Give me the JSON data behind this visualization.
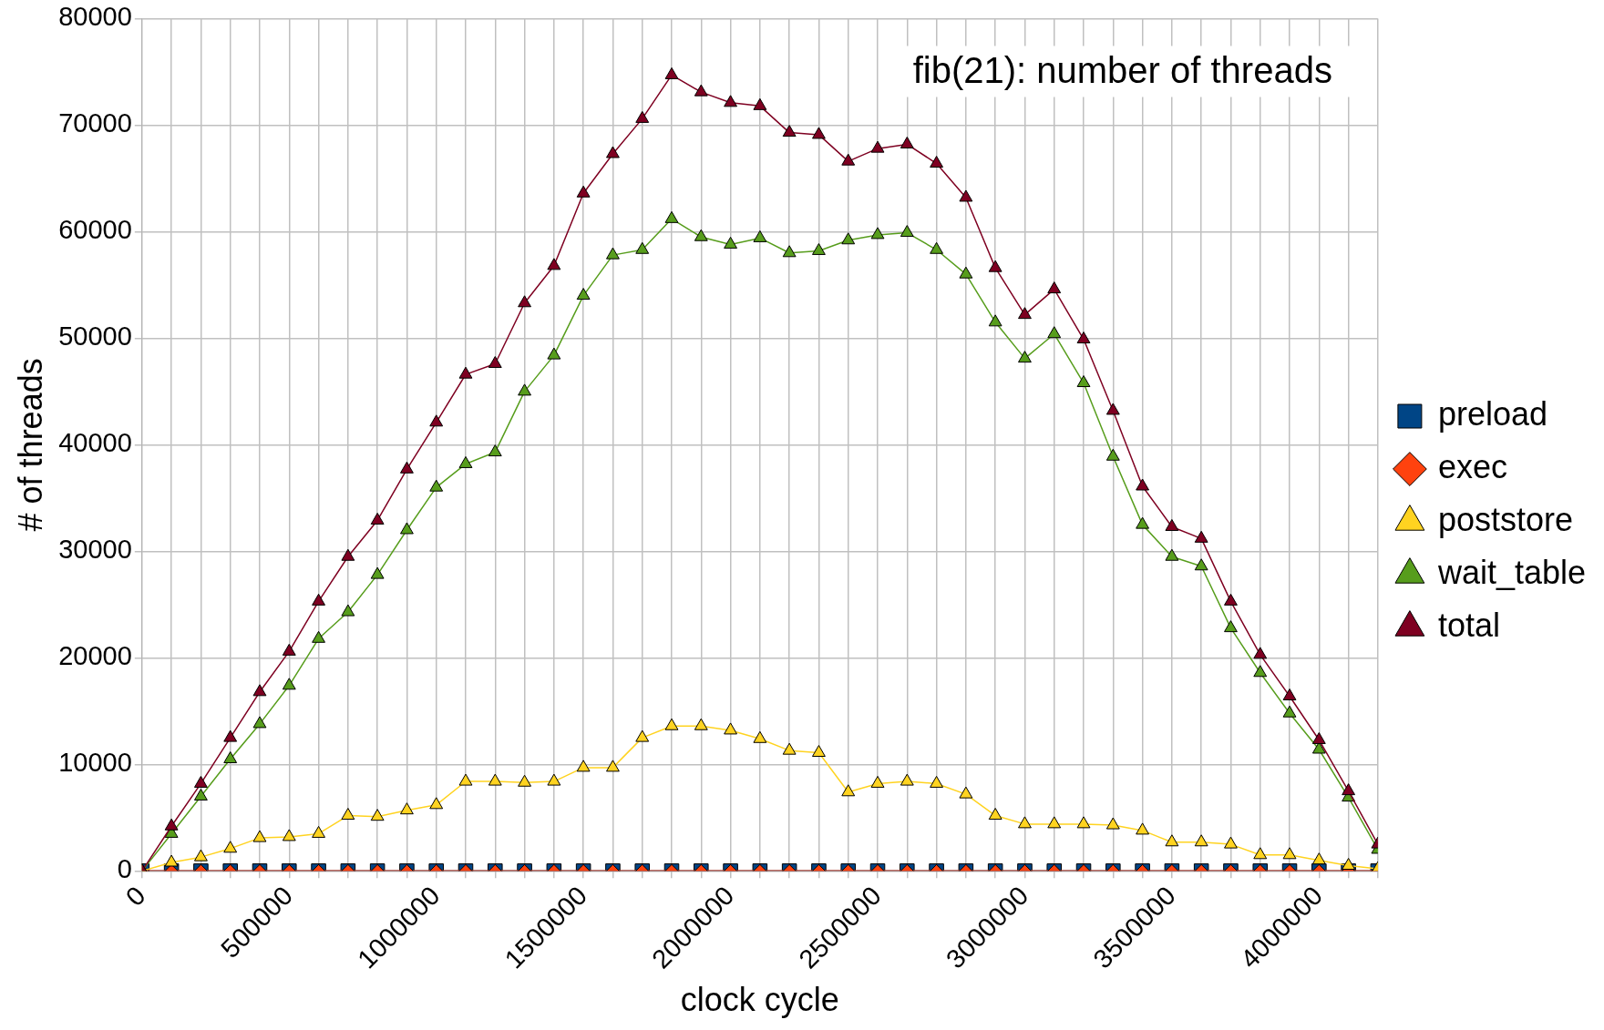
{
  "chart_data": {
    "type": "line",
    "title": "fib(21): number of threads",
    "xlabel": "clock cycle",
    "ylabel": "# of threads",
    "x": [
      0,
      100000,
      200000,
      300000,
      400000,
      500000,
      600000,
      700000,
      800000,
      900000,
      1000000,
      1100000,
      1200000,
      1300000,
      1400000,
      1500000,
      1600000,
      1700000,
      1800000,
      1900000,
      2000000,
      2100000,
      2200000,
      2300000,
      2400000,
      2500000,
      2600000,
      2700000,
      2800000,
      2900000,
      3000000,
      3100000,
      3200000,
      3300000,
      3400000,
      3500000,
      3600000,
      3700000,
      3800000,
      3900000,
      4000000,
      4100000,
      4200000
    ],
    "series": [
      {
        "name": "preload",
        "color": "#004586",
        "marker": "square",
        "values": [
          0,
          0,
          0,
          0,
          0,
          0,
          0,
          0,
          0,
          0,
          0,
          0,
          0,
          0,
          0,
          0,
          0,
          0,
          0,
          0,
          0,
          0,
          0,
          0,
          0,
          0,
          0,
          0,
          0,
          0,
          0,
          0,
          0,
          0,
          0,
          0,
          0,
          0,
          0,
          0,
          0,
          0,
          0
        ]
      },
      {
        "name": "exec",
        "color": "#ff420e",
        "marker": "diamond",
        "values": [
          0,
          0,
          0,
          0,
          0,
          0,
          0,
          0,
          0,
          0,
          0,
          0,
          0,
          0,
          0,
          0,
          0,
          0,
          0,
          0,
          0,
          0,
          0,
          0,
          0,
          0,
          0,
          0,
          0,
          0,
          0,
          0,
          0,
          0,
          0,
          0,
          0,
          0,
          0,
          0,
          0,
          0,
          0
        ]
      },
      {
        "name": "poststore",
        "color": "#ffd320",
        "marker": "triangle",
        "values": [
          0,
          800,
          1300,
          2100,
          3100,
          3200,
          3500,
          5200,
          5100,
          5700,
          6200,
          8400,
          8400,
          8300,
          8400,
          9700,
          9700,
          12500,
          13600,
          13600,
          13200,
          12400,
          11300,
          11100,
          7400,
          8200,
          8400,
          8200,
          7200,
          5200,
          4400,
          4400,
          4400,
          4300,
          3800,
          2700,
          2700,
          2500,
          1500,
          1500,
          1000,
          500,
          200
        ]
      },
      {
        "name": "wait_table",
        "color": "#579d1c",
        "marker": "triangle",
        "values": [
          0,
          3500,
          7000,
          10500,
          13800,
          17400,
          21800,
          24300,
          27800,
          32000,
          36000,
          38200,
          39300,
          45000,
          48400,
          54000,
          57800,
          58300,
          61200,
          59500,
          58800,
          59400,
          58000,
          58200,
          59200,
          59700,
          59900,
          58300,
          56000,
          51500,
          48100,
          50400,
          45800,
          38900,
          32500,
          29500,
          28600,
          22800,
          18600,
          14800,
          11400,
          6900,
          2000
        ]
      },
      {
        "name": "total",
        "color": "#7e0021",
        "marker": "triangle",
        "values": [
          0,
          4200,
          8200,
          12500,
          16800,
          20600,
          25300,
          29500,
          32900,
          37700,
          42100,
          46600,
          47600,
          53300,
          56800,
          63600,
          67300,
          70600,
          74700,
          73100,
          72100,
          71800,
          69300,
          69100,
          66600,
          67800,
          68200,
          66400,
          63200,
          56600,
          52200,
          54600,
          49900,
          43200,
          36100,
          32300,
          31200,
          25300,
          20300,
          16400,
          12300,
          7500,
          2500
        ]
      }
    ],
    "xlim": [
      0,
      4200000
    ],
    "xticks": [
      0,
      {
        "value": 100000,
        "label": null
      },
      {
        "value": 200000,
        "label": null
      },
      {
        "value": 300000,
        "label": null
      },
      {
        "value": 400000,
        "label": null
      },
      500000,
      {
        "value": 600000,
        "label": null
      },
      {
        "value": 700000,
        "label": null
      },
      {
        "value": 800000,
        "label": null
      },
      {
        "value": 900000,
        "label": null
      },
      1000000,
      {
        "value": 1100000,
        "label": null
      },
      {
        "value": 1200000,
        "label": null
      },
      {
        "value": 1300000,
        "label": null
      },
      {
        "value": 1400000,
        "label": null
      },
      1500000,
      {
        "value": 1600000,
        "label": null
      },
      {
        "value": 1700000,
        "label": null
      },
      {
        "value": 1800000,
        "label": null
      },
      {
        "value": 1900000,
        "label": null
      },
      2000000,
      {
        "value": 2100000,
        "label": null
      },
      {
        "value": 2200000,
        "label": null
      },
      {
        "value": 2300000,
        "label": null
      },
      {
        "value": 2400000,
        "label": null
      },
      2500000,
      {
        "value": 2600000,
        "label": null
      },
      {
        "value": 2700000,
        "label": null
      },
      {
        "value": 2800000,
        "label": null
      },
      {
        "value": 2900000,
        "label": null
      },
      3000000,
      {
        "value": 3100000,
        "label": null
      },
      {
        "value": 3200000,
        "label": null
      },
      {
        "value": 3300000,
        "label": null
      },
      {
        "value": 3400000,
        "label": null
      },
      3500000,
      {
        "value": 3600000,
        "label": null
      },
      {
        "value": 3700000,
        "label": null
      },
      {
        "value": 3800000,
        "label": null
      },
      {
        "value": 3900000,
        "label": null
      },
      4000000,
      {
        "value": 4100000,
        "label": null
      },
      {
        "value": 4200000,
        "label": null
      }
    ],
    "ylim": [
      0,
      80000
    ],
    "yticks": [
      0,
      10000,
      20000,
      30000,
      40000,
      50000,
      60000,
      70000,
      80000
    ],
    "grid": true,
    "legend": "right",
    "line_style": "solid"
  }
}
